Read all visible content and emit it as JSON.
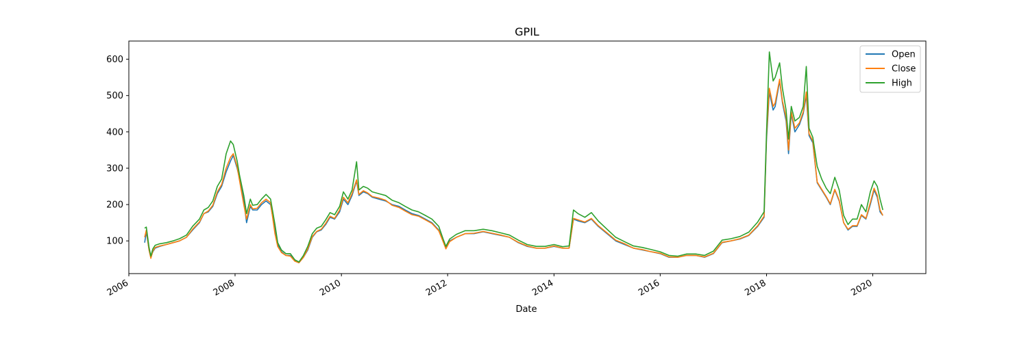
{
  "chart_data": {
    "type": "line",
    "title": "GPIL",
    "xlabel": "Date",
    "ylabel": "",
    "xlim": [
      "2006-01-01",
      "2020-12-31"
    ],
    "ylim": [
      10,
      650
    ],
    "x_ticks": [
      "2006",
      "2008",
      "2010",
      "2012",
      "2014",
      "2016",
      "2018",
      "2020"
    ],
    "y_ticks": [
      100,
      200,
      300,
      400,
      500,
      600
    ],
    "legend": {
      "position": "top-right",
      "entries": [
        "Open",
        "Close",
        "High"
      ]
    },
    "grid": false,
    "colors": {
      "Open": "#1f77b4",
      "Close": "#ff7f0e",
      "High": "#2ca02c"
    },
    "x": [
      "2006-04-20",
      "2006-05-01",
      "2006-05-20",
      "2006-06-01",
      "2006-06-15",
      "2006-07-01",
      "2006-08-01",
      "2006-09-15",
      "2006-11-01",
      "2006-12-15",
      "2007-02-01",
      "2007-03-15",
      "2007-05-01",
      "2007-06-01",
      "2007-07-01",
      "2007-08-01",
      "2007-09-01",
      "2007-10-01",
      "2007-11-01",
      "2007-12-01",
      "2007-12-20",
      "2008-01-15",
      "2008-02-01",
      "2008-03-01",
      "2008-03-20",
      "2008-04-15",
      "2008-05-01",
      "2008-06-01",
      "2008-07-01",
      "2008-08-01",
      "2008-09-01",
      "2008-10-01",
      "2008-10-20",
      "2008-11-15",
      "2008-12-15",
      "2009-01-15",
      "2009-02-15",
      "2009-03-15",
      "2009-04-15",
      "2009-05-15",
      "2009-06-15",
      "2009-07-15",
      "2009-08-15",
      "2009-09-15",
      "2009-10-15",
      "2009-11-15",
      "2009-12-20",
      "2010-01-15",
      "2010-02-15",
      "2010-03-15",
      "2010-04-15",
      "2010-05-01",
      "2010-06-01",
      "2010-07-01",
      "2010-08-01",
      "2010-09-15",
      "2010-11-01",
      "2010-12-15",
      "2011-02-01",
      "2011-03-15",
      "2011-05-01",
      "2011-06-15",
      "2011-08-01",
      "2011-09-15",
      "2011-11-01",
      "2011-12-01",
      "2011-12-20",
      "2012-01-15",
      "2012-03-01",
      "2012-05-01",
      "2012-07-01",
      "2012-09-01",
      "2012-11-01",
      "2013-01-01",
      "2013-03-01",
      "2013-05-01",
      "2013-07-01",
      "2013-09-01",
      "2013-11-01",
      "2014-01-01",
      "2014-03-01",
      "2014-04-15",
      "2014-05-15",
      "2014-06-15",
      "2014-08-01",
      "2014-09-15",
      "2014-11-01",
      "2015-01-01",
      "2015-03-01",
      "2015-05-01",
      "2015-07-01",
      "2015-09-01",
      "2015-11-01",
      "2016-01-01",
      "2016-03-01",
      "2016-05-01",
      "2016-07-01",
      "2016-09-01",
      "2016-11-01",
      "2017-01-01",
      "2017-03-01",
      "2017-05-01",
      "2017-07-01",
      "2017-09-01",
      "2017-11-01",
      "2017-12-15",
      "2018-01-01",
      "2018-01-20",
      "2018-02-15",
      "2018-03-01",
      "2018-04-01",
      "2018-04-20",
      "2018-05-15",
      "2018-06-01",
      "2018-06-20",
      "2018-07-15",
      "2018-08-15",
      "2018-09-10",
      "2018-10-01",
      "2018-10-20",
      "2018-11-15",
      "2018-12-15",
      "2019-01-15",
      "2019-02-15",
      "2019-03-15",
      "2019-04-15",
      "2019-05-15",
      "2019-06-15",
      "2019-07-15",
      "2019-08-15",
      "2019-09-15",
      "2019-10-15",
      "2019-11-15",
      "2019-12-15",
      "2020-01-10",
      "2020-02-01",
      "2020-02-20",
      "2020-03-10"
    ],
    "series": [
      {
        "name": "Open",
        "values": [
          95,
          125,
          75,
          55,
          70,
          80,
          85,
          90,
          95,
          100,
          110,
          130,
          150,
          175,
          180,
          195,
          230,
          250,
          290,
          320,
          335,
          300,
          270,
          210,
          150,
          195,
          185,
          185,
          200,
          210,
          200,
          130,
          90,
          70,
          60,
          60,
          45,
          40,
          55,
          75,
          110,
          125,
          130,
          145,
          165,
          160,
          180,
          215,
          200,
          225,
          265,
          225,
          235,
          230,
          220,
          215,
          210,
          200,
          195,
          185,
          175,
          170,
          160,
          150,
          130,
          100,
          80,
          100,
          110,
          120,
          120,
          125,
          120,
          115,
          110,
          95,
          85,
          80,
          80,
          85,
          80,
          80,
          160,
          155,
          150,
          160,
          140,
          120,
          100,
          90,
          80,
          75,
          70,
          65,
          55,
          55,
          60,
          60,
          55,
          65,
          95,
          100,
          105,
          115,
          140,
          165,
          380,
          510,
          460,
          470,
          540,
          480,
          430,
          340,
          450,
          400,
          420,
          450,
          500,
          390,
          370,
          260,
          240,
          220,
          200,
          240,
          210,
          150,
          130,
          140,
          140,
          170,
          160,
          200,
          240,
          220,
          180,
          170
        ]
      },
      {
        "name": "Close",
        "values": [
          110,
          130,
          75,
          52,
          72,
          82,
          86,
          90,
          95,
          100,
          110,
          132,
          152,
          175,
          182,
          198,
          235,
          255,
          300,
          330,
          340,
          305,
          265,
          200,
          160,
          200,
          188,
          190,
          205,
          215,
          205,
          120,
          85,
          68,
          60,
          58,
          44,
          40,
          55,
          78,
          112,
          126,
          132,
          148,
          168,
          162,
          185,
          220,
          205,
          230,
          268,
          228,
          238,
          232,
          222,
          218,
          212,
          198,
          192,
          182,
          172,
          168,
          158,
          148,
          128,
          98,
          78,
          98,
          110,
          120,
          121,
          126,
          121,
          116,
          110,
          96,
          86,
          80,
          80,
          86,
          80,
          80,
          162,
          158,
          152,
          162,
          142,
          122,
          102,
          92,
          80,
          76,
          70,
          66,
          56,
          55,
          60,
          60,
          56,
          66,
          96,
          100,
          106,
          116,
          142,
          168,
          390,
          520,
          470,
          480,
          545,
          485,
          440,
          350,
          455,
          410,
          425,
          455,
          510,
          395,
          375,
          262,
          242,
          222,
          202,
          242,
          212,
          150,
          132,
          142,
          142,
          172,
          162,
          205,
          245,
          225,
          185,
          170
        ]
      },
      {
        "name": "High",
        "values": [
          135,
          138,
          82,
          58,
          78,
          88,
          92,
          95,
          100,
          106,
          116,
          140,
          160,
          185,
          192,
          210,
          250,
          270,
          340,
          375,
          365,
          320,
          280,
          225,
          175,
          215,
          198,
          200,
          215,
          228,
          215,
          145,
          95,
          75,
          65,
          65,
          48,
          42,
          60,
          85,
          120,
          135,
          140,
          158,
          178,
          172,
          195,
          235,
          215,
          240,
          318,
          240,
          250,
          245,
          235,
          230,
          225,
          212,
          205,
          195,
          185,
          180,
          170,
          160,
          140,
          105,
          85,
          105,
          118,
          128,
          128,
          132,
          128,
          122,
          116,
          102,
          90,
          85,
          85,
          90,
          84,
          86,
          185,
          175,
          165,
          178,
          155,
          132,
          110,
          98,
          86,
          82,
          76,
          70,
          60,
          58,
          64,
          64,
          60,
          72,
          102,
          106,
          112,
          124,
          152,
          180,
          400,
          620,
          540,
          550,
          590,
          520,
          460,
          380,
          470,
          430,
          440,
          470,
          580,
          410,
          385,
          305,
          270,
          245,
          230,
          275,
          240,
          170,
          145,
          160,
          160,
          200,
          180,
          235,
          265,
          250,
          215,
          185
        ]
      }
    ]
  }
}
